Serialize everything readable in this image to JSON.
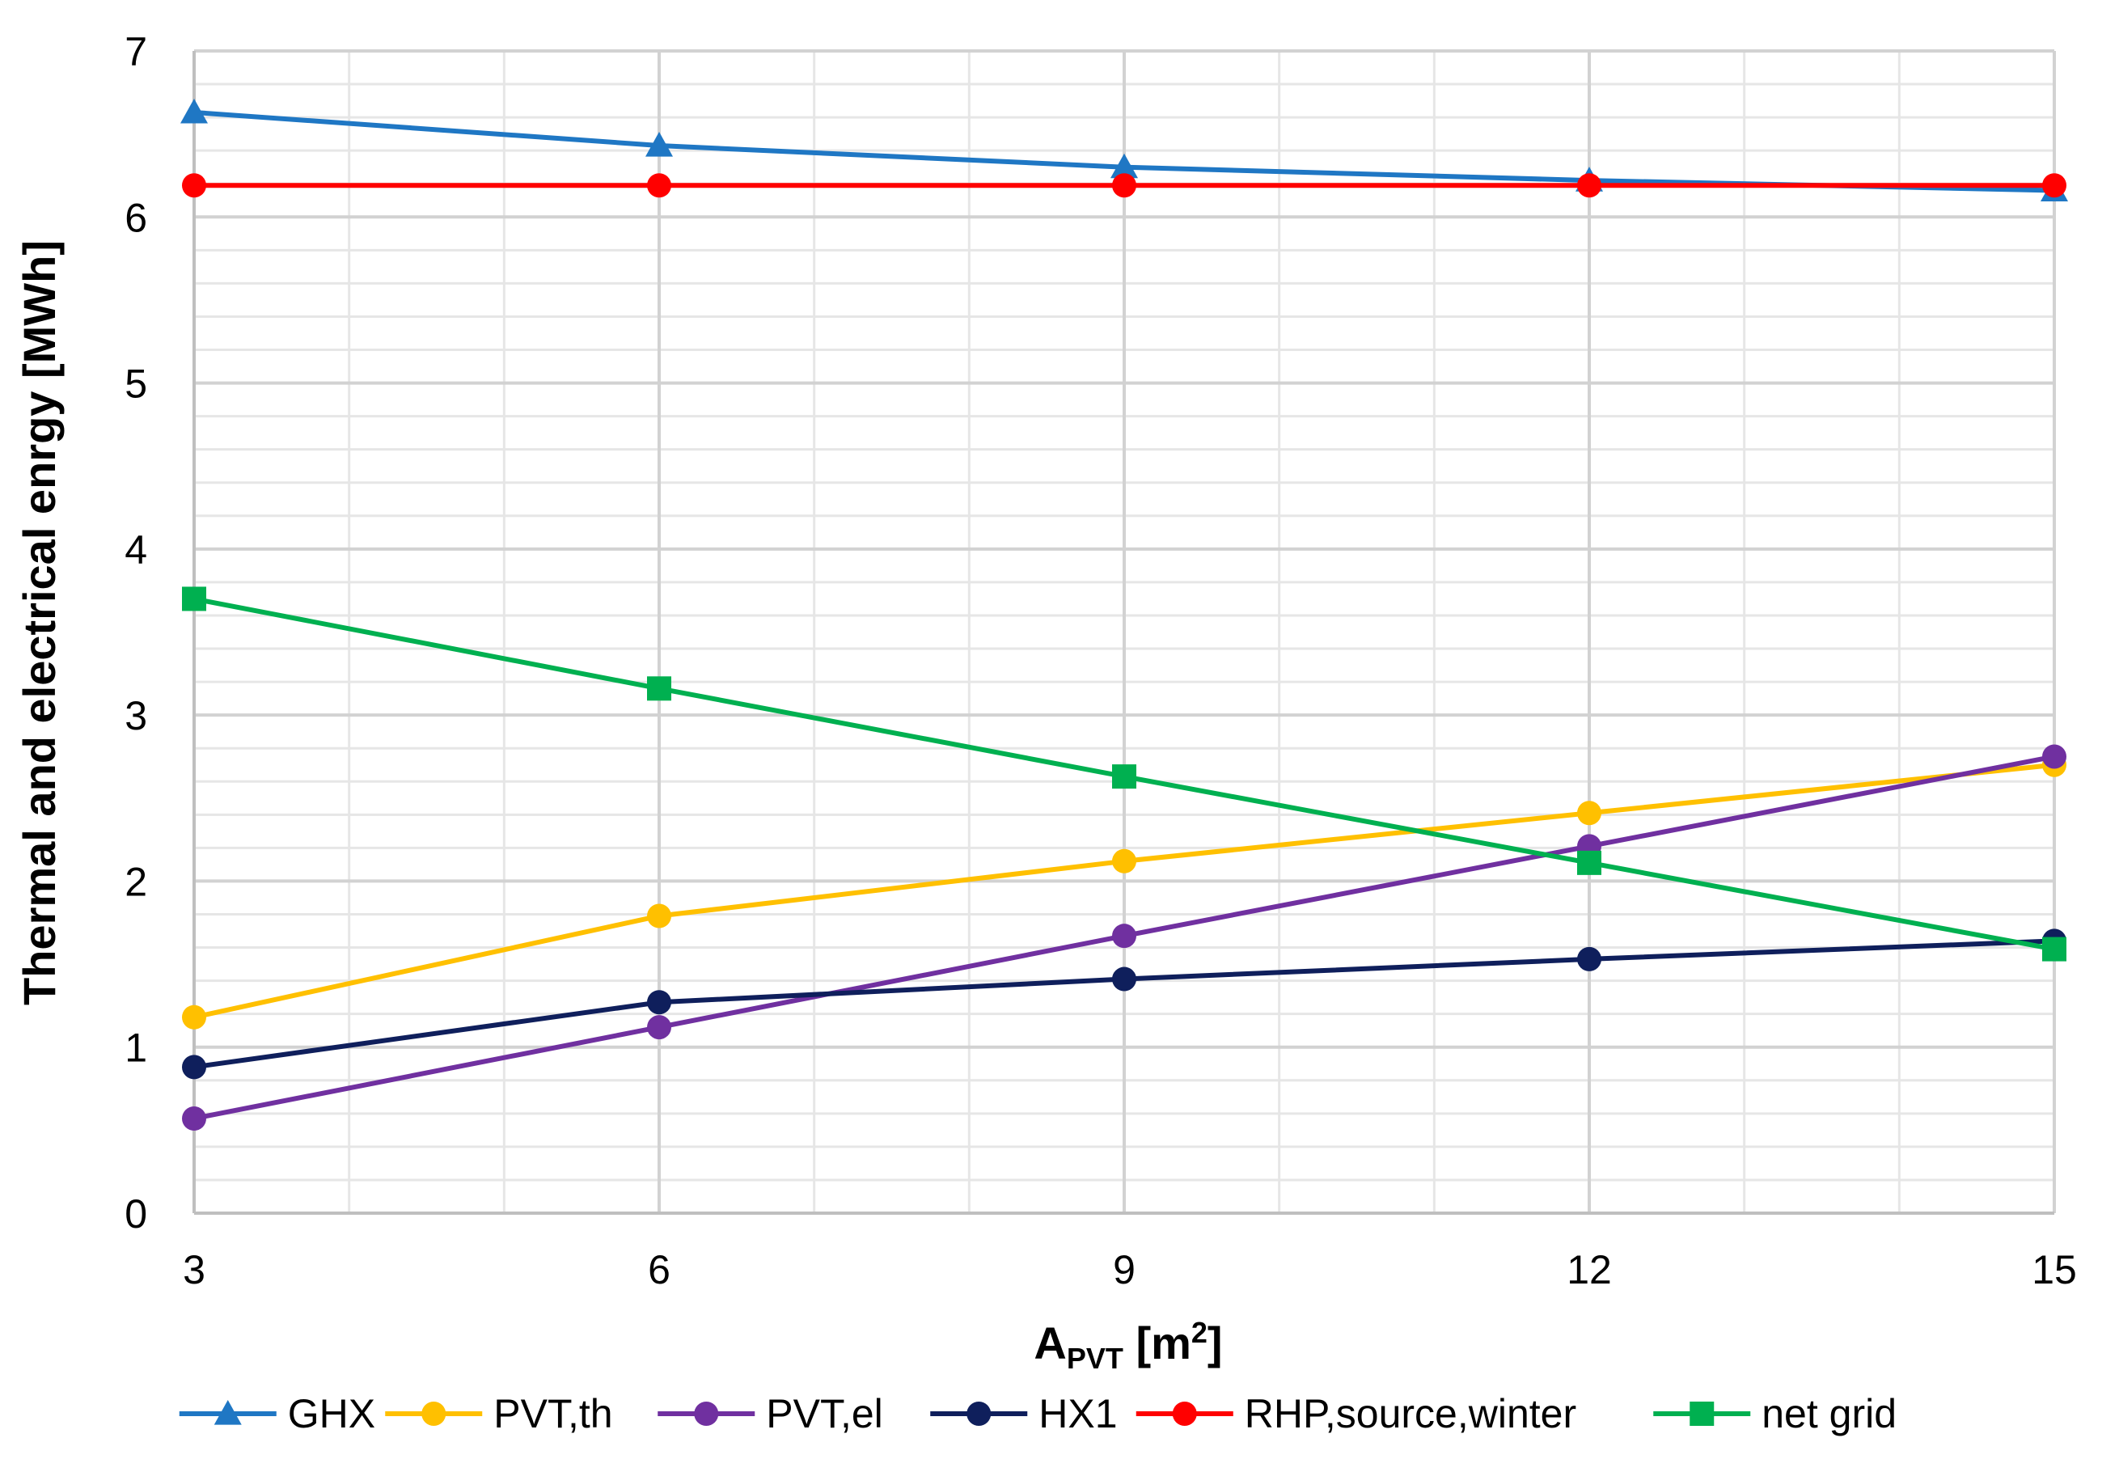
{
  "chart_data": {
    "type": "line",
    "title": "",
    "xlabel_main": "A",
    "xlabel_sub": "PVT",
    "xlabel_rest": " [m",
    "xlabel_sup": "2",
    "xlabel_end": "]",
    "ylabel": "Thermal and electrical enrgy [MWh]",
    "xlim": [
      3,
      15
    ],
    "ylim": [
      0,
      7
    ],
    "x_ticks": [
      3,
      6,
      9,
      12,
      15
    ],
    "y_ticks": [
      0,
      1,
      2,
      3,
      4,
      5,
      6,
      7
    ],
    "x_minor_step": 1,
    "y_minor_step": 0.2,
    "grid": true,
    "legend_position": "bottom",
    "x": [
      3,
      6,
      9,
      12,
      15
    ],
    "series": [
      {
        "name": "GHX",
        "color": "#1f77c4",
        "marker": "triangle",
        "values": [
          6.63,
          6.43,
          6.3,
          6.22,
          6.16
        ]
      },
      {
        "name": "PVT,th",
        "color": "#ffc000",
        "marker": "circle",
        "values": [
          1.18,
          1.79,
          2.12,
          2.41,
          2.7
        ]
      },
      {
        "name": "PVT,el",
        "color": "#7030a0",
        "marker": "circle",
        "values": [
          0.57,
          1.12,
          1.67,
          2.21,
          2.75
        ]
      },
      {
        "name": "HX1",
        "color": "#0f1f5c",
        "marker": "circle",
        "values": [
          0.88,
          1.27,
          1.41,
          1.53,
          1.64
        ]
      },
      {
        "name": "RHP,source,winter",
        "color": "#ff0000",
        "marker": "circle",
        "values": [
          6.19,
          6.19,
          6.19,
          6.19,
          6.19
        ]
      },
      {
        "name": "net grid",
        "color": "#00b050",
        "marker": "square",
        "values": [
          3.7,
          3.16,
          2.63,
          2.11,
          1.59
        ]
      }
    ]
  }
}
